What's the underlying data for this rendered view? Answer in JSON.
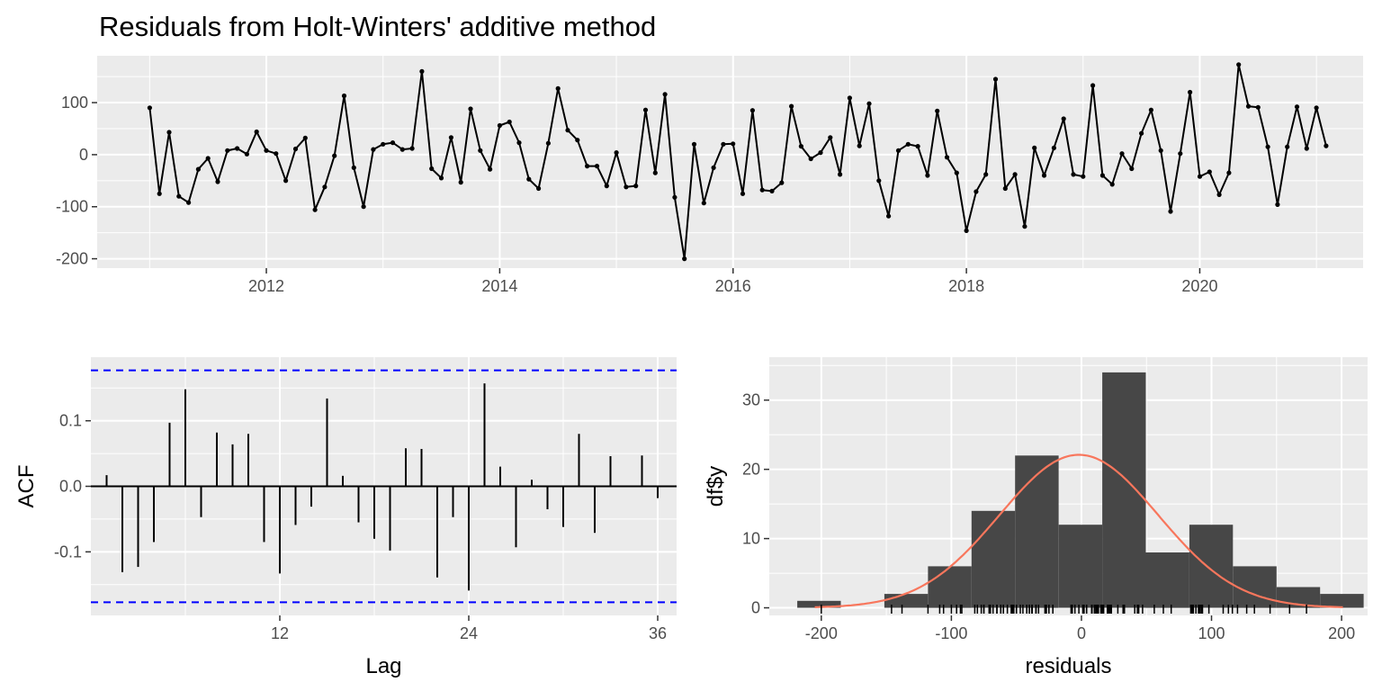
{
  "figure": {
    "title": "Residuals from Holt-Winters' additive method"
  },
  "chart_data": [
    {
      "type": "line",
      "title": "Residuals from Holt-Winters' additive method",
      "xlabel": "",
      "ylabel": "",
      "x_start": "2011-01",
      "x_end": "2021-02",
      "frequency": "monthly",
      "xlim": [
        2010.55,
        2021.4
      ],
      "ylim": [
        -218,
        190
      ],
      "xticks": [
        2012,
        2014,
        2016,
        2018,
        2020
      ],
      "yticks": [
        -200,
        -100,
        0,
        100
      ],
      "points": true,
      "grid": true,
      "y": [
        90,
        -75,
        43,
        -80,
        -92,
        -28,
        -7,
        -52,
        8,
        12,
        1,
        44,
        8,
        2,
        -50,
        11,
        32,
        -106,
        -62,
        -2,
        113,
        -25,
        -100,
        10,
        20,
        23,
        10,
        12,
        160,
        -27,
        -45,
        33,
        -53,
        88,
        8,
        -28,
        56,
        63,
        23,
        -47,
        -65,
        22,
        127,
        47,
        28,
        -22,
        -22,
        -60,
        4,
        -62,
        -60,
        86,
        -35,
        116,
        -82,
        -200,
        20,
        -93,
        -25,
        20,
        21,
        -75,
        85,
        -68,
        -70,
        -54,
        93,
        16,
        -8,
        4,
        33,
        -38,
        109,
        17,
        98,
        -50,
        -118,
        8,
        20,
        16,
        -40,
        84,
        -5,
        -35,
        -146,
        -71,
        -38,
        145,
        -65,
        -38,
        -138,
        13,
        -40,
        13,
        69,
        -38,
        -42,
        133,
        -40,
        -57,
        2,
        -27,
        41,
        86,
        8,
        -109,
        2,
        120,
        -42,
        -33,
        -77,
        -35,
        173,
        93,
        91,
        15,
        -96,
        15,
        92,
        12,
        90,
        17
      ]
    },
    {
      "type": "bar",
      "xlabel": "Lag",
      "ylabel": "ACF",
      "xlim": [
        0,
        37.2
      ],
      "ylim": [
        -0.197,
        0.197
      ],
      "xticks": [
        12,
        24,
        36
      ],
      "yticks": [
        -0.1,
        0.0,
        0.1
      ],
      "grid": true,
      "lags": [
        1,
        2,
        3,
        4,
        5,
        6,
        7,
        8,
        9,
        10,
        11,
        12,
        13,
        14,
        15,
        16,
        17,
        18,
        19,
        20,
        21,
        22,
        23,
        24,
        25,
        26,
        27,
        28,
        29,
        30,
        31,
        32,
        33,
        34,
        35,
        36
      ],
      "values": [
        0.017,
        -0.131,
        -0.123,
        -0.085,
        0.097,
        0.148,
        -0.047,
        0.082,
        0.064,
        0.08,
        -0.085,
        -0.133,
        -0.059,
        -0.031,
        0.134,
        0.016,
        -0.055,
        -0.08,
        -0.098,
        0.058,
        0.057,
        -0.139,
        -0.047,
        -0.159,
        0.157,
        0.03,
        -0.093,
        0.01,
        -0.035,
        -0.062,
        0.08,
        -0.071,
        0.046,
        0.0,
        0.047,
        -0.018
      ],
      "confidence_bound": 0.177,
      "confidence_color": "#0000ff"
    },
    {
      "type": "histogram",
      "xlabel": "residuals",
      "ylabel": "df$y",
      "xlim": [
        -240,
        220
      ],
      "ylim": [
        -1.1,
        36.2
      ],
      "xticks": [
        -200,
        -100,
        0,
        100,
        200
      ],
      "yticks": [
        0,
        10,
        20,
        30
      ],
      "grid": true,
      "bin_width": 33.5,
      "bins": [
        {
          "x0": -218.5,
          "x1": -185.0,
          "count": 1
        },
        {
          "x0": -185.0,
          "x1": -151.5,
          "count": 0
        },
        {
          "x0": -151.5,
          "x1": -118.0,
          "count": 2
        },
        {
          "x0": -118.0,
          "x1": -84.5,
          "count": 6
        },
        {
          "x0": -84.5,
          "x1": -51.0,
          "count": 14
        },
        {
          "x0": -51.0,
          "x1": -17.5,
          "count": 22
        },
        {
          "x0": -17.5,
          "x1": 16.0,
          "count": 12
        },
        {
          "x0": 16.0,
          "x1": 49.5,
          "count": 34
        },
        {
          "x0": 49.5,
          "x1": 83.0,
          "count": 8
        },
        {
          "x0": 83.0,
          "x1": 116.5,
          "count": 12
        },
        {
          "x0": 116.5,
          "x1": 150.0,
          "count": 6
        },
        {
          "x0": 150.0,
          "x1": 183.5,
          "count": 3
        },
        {
          "x0": 183.5,
          "x1": 217.0,
          "count": 2
        }
      ],
      "bar_color": "#474747",
      "density_curve": {
        "mean": -2,
        "sd": 61,
        "peak": 22.1,
        "color": "#f8765c",
        "x_range": [
          -205,
          202
        ]
      },
      "rug": true
    }
  ]
}
